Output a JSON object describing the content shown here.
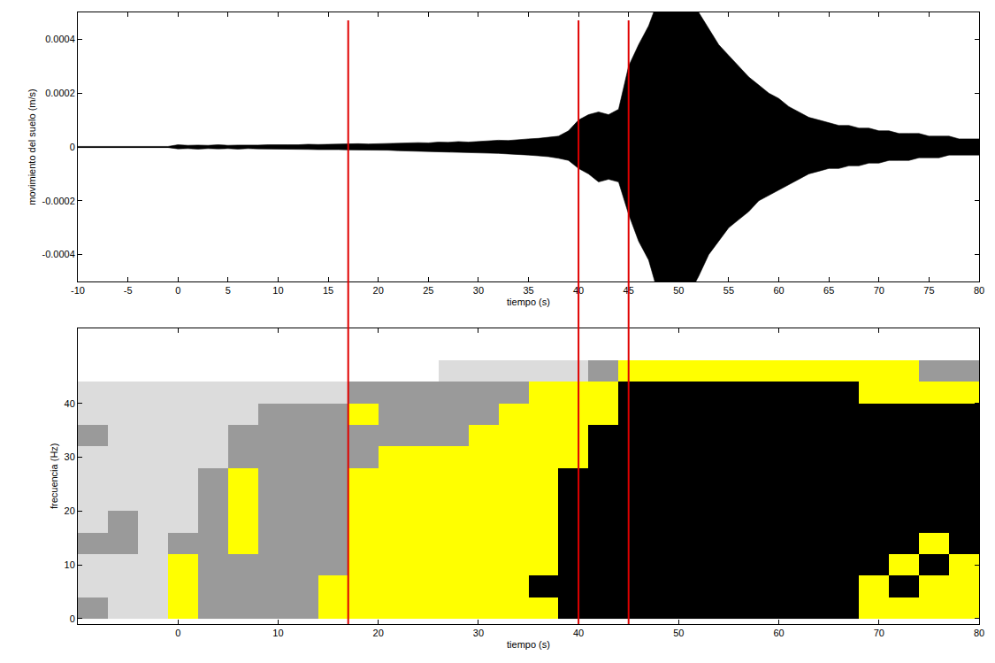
{
  "chart_data": [
    {
      "type": "line",
      "x_label": "tiempo (s)",
      "y_label": "movimiento del suelo (m/s)",
      "color": "#000000",
      "x": [
        -10,
        -9,
        -8,
        -7,
        -6,
        -5,
        -4,
        -3,
        -2,
        -1,
        0,
        1,
        2,
        3,
        4,
        5,
        6,
        7,
        8,
        9,
        10,
        11,
        12,
        13,
        14,
        15,
        16,
        17,
        18,
        19,
        20,
        21,
        22,
        23,
        24,
        25,
        26,
        27,
        28,
        29,
        30,
        31,
        32,
        33,
        34,
        35,
        36,
        37,
        38,
        39,
        40,
        41,
        42,
        43,
        44,
        45,
        46,
        47,
        48,
        49,
        50,
        51,
        52,
        53,
        54,
        55,
        56,
        57,
        58,
        59,
        60,
        61,
        62,
        63,
        64,
        65,
        66,
        67,
        68,
        69,
        70,
        71,
        72,
        73,
        74,
        75,
        76,
        77,
        78,
        79,
        80
      ],
      "upper": [
        2e-06,
        2e-06,
        2e-06,
        2e-06,
        2e-06,
        2e-06,
        2e-06,
        2e-06,
        2e-06,
        2e-06,
        8e-06,
        6e-06,
        7e-06,
        6e-06,
        8e-06,
        6e-06,
        7e-06,
        6e-06,
        7e-06,
        8e-06,
        7e-06,
        8e-06,
        8e-06,
        1e-05,
        9e-06,
        1e-05,
        9e-06,
        1e-05,
        1.2e-05,
        1.1e-05,
        1.2e-05,
        1.3e-05,
        1.5e-05,
        1.4e-05,
        1.6e-05,
        1.5e-05,
        1.8e-05,
        1.7e-05,
        2e-05,
        1.8e-05,
        2e-05,
        2.2e-05,
        2.5e-05,
        2.4e-05,
        2.8e-05,
        3e-05,
        3.2e-05,
        3.5e-05,
        4e-05,
        6e-05,
        0.0001,
        0.00012,
        0.00013,
        0.00012,
        0.00014,
        0.0003,
        0.00038,
        0.00045,
        0.00055,
        0.00055,
        0.00055,
        0.00055,
        0.0005,
        0.00044,
        0.00038,
        0.00034,
        0.0003,
        0.00026,
        0.00023,
        0.0002,
        0.00018,
        0.00015,
        0.00013,
        0.00011,
        0.0001,
        9e-05,
        8e-05,
        8e-05,
        7e-05,
        7e-05,
        6e-05,
        6e-05,
        5e-05,
        5e-05,
        5e-05,
        4e-05,
        4e-05,
        4e-05,
        3e-05,
        3e-05,
        3e-05
      ],
      "lower": [
        -2e-06,
        -2e-06,
        -2e-06,
        -2e-06,
        -2e-06,
        -2e-06,
        -2e-06,
        -2e-06,
        -2e-06,
        -2e-06,
        -7e-06,
        -6e-06,
        -8e-06,
        -6e-06,
        -7e-06,
        -6e-06,
        -8e-06,
        -6e-06,
        -7e-06,
        -7e-06,
        -8e-06,
        -7e-06,
        -9e-06,
        -9e-06,
        -1e-05,
        -9e-06,
        -1e-05,
        -1.1e-05,
        -1.1e-05,
        -1.2e-05,
        -1.3e-05,
        -1.2e-05,
        -1.4e-05,
        -1.5e-05,
        -1.6e-05,
        -1.5e-05,
        -1.7e-05,
        -1.8e-05,
        -1.9e-05,
        -2e-05,
        -2.1e-05,
        -2.2e-05,
        -2.4e-05,
        -2.6e-05,
        -2.7e-05,
        -3e-05,
        -3.3e-05,
        -3.6e-05,
        -4.2e-05,
        -5e-05,
        -8e-05,
        -0.0001,
        -0.00013,
        -0.00012,
        -0.00013,
        -0.00025,
        -0.00035,
        -0.00042,
        -0.00055,
        -0.00055,
        -0.00055,
        -0.00055,
        -0.00048,
        -0.0004,
        -0.00035,
        -0.0003,
        -0.00027,
        -0.00024,
        -0.0002,
        -0.00018,
        -0.00016,
        -0.00014,
        -0.00012,
        -0.0001,
        -9e-05,
        -8e-05,
        -8e-05,
        -7e-05,
        -7e-05,
        -6e-05,
        -6e-05,
        -5e-05,
        -5e-05,
        -5e-05,
        -4e-05,
        -4e-05,
        -4e-05,
        -3e-05,
        -3e-05,
        -3e-05,
        -3e-05
      ],
      "xlim": [
        -10,
        80
      ],
      "xticks": [
        -10,
        -5,
        0,
        5,
        10,
        15,
        20,
        25,
        30,
        35,
        40,
        45,
        50,
        55,
        60,
        65,
        70,
        75,
        80
      ],
      "ylim": [
        -0.0005,
        0.0005
      ],
      "yticks": [
        -0.0004,
        -0.0002,
        0,
        0.0002,
        0.0004
      ],
      "grid": false
    },
    {
      "type": "heatmap",
      "x_label": "tiempo (s)",
      "y_label": "frecuencia (Hz)",
      "x_edges": [
        -10,
        -7,
        -4,
        -1,
        2,
        5,
        8,
        11,
        14,
        17,
        20,
        23,
        26,
        29,
        32,
        35,
        38,
        41,
        44,
        47,
        50,
        53,
        56,
        59,
        62,
        65,
        68,
        71,
        74,
        77,
        80
      ],
      "y_edges": [
        0,
        4,
        8,
        12,
        16,
        20,
        24,
        28,
        32,
        36,
        40,
        44,
        48
      ],
      "colors": [
        "#ffffff",
        "#dcdcdc",
        "#9a9a9a",
        "#ffff00",
        "#000000"
      ],
      "cells": [
        [
          2,
          1,
          1,
          3,
          2,
          2,
          2,
          2,
          3,
          3,
          3,
          3,
          3,
          3,
          3,
          3,
          4,
          4,
          4,
          4,
          4,
          4,
          4,
          4,
          4,
          4,
          3,
          3,
          3,
          3
        ],
        [
          1,
          1,
          1,
          3,
          2,
          2,
          2,
          2,
          3,
          3,
          3,
          3,
          3,
          3,
          3,
          4,
          4,
          4,
          4,
          4,
          4,
          4,
          4,
          4,
          4,
          4,
          3,
          4,
          3,
          3
        ],
        [
          1,
          1,
          1,
          3,
          2,
          2,
          2,
          2,
          2,
          3,
          3,
          3,
          3,
          3,
          3,
          3,
          4,
          4,
          4,
          4,
          4,
          4,
          4,
          4,
          4,
          4,
          4,
          3,
          4,
          3
        ],
        [
          2,
          2,
          1,
          2,
          2,
          3,
          2,
          2,
          2,
          3,
          3,
          3,
          3,
          3,
          3,
          3,
          4,
          4,
          4,
          4,
          4,
          4,
          4,
          4,
          4,
          4,
          4,
          4,
          3,
          4
        ],
        [
          1,
          2,
          1,
          1,
          2,
          3,
          2,
          2,
          2,
          3,
          3,
          3,
          3,
          3,
          3,
          3,
          4,
          4,
          4,
          4,
          4,
          4,
          4,
          4,
          4,
          4,
          4,
          4,
          4,
          4
        ],
        [
          1,
          1,
          1,
          1,
          2,
          3,
          2,
          2,
          2,
          3,
          3,
          3,
          3,
          3,
          3,
          3,
          4,
          4,
          4,
          4,
          4,
          4,
          4,
          4,
          4,
          4,
          4,
          4,
          4,
          4
        ],
        [
          1,
          1,
          1,
          1,
          2,
          3,
          2,
          2,
          2,
          3,
          3,
          3,
          3,
          3,
          3,
          3,
          4,
          4,
          4,
          4,
          4,
          4,
          4,
          4,
          4,
          4,
          4,
          4,
          4,
          4
        ],
        [
          1,
          1,
          1,
          1,
          1,
          2,
          2,
          2,
          2,
          2,
          3,
          3,
          3,
          3,
          3,
          3,
          3,
          4,
          4,
          4,
          4,
          4,
          4,
          4,
          4,
          4,
          4,
          4,
          4,
          4
        ],
        [
          2,
          1,
          1,
          1,
          1,
          2,
          2,
          2,
          2,
          2,
          2,
          2,
          2,
          3,
          3,
          3,
          3,
          4,
          4,
          4,
          4,
          4,
          4,
          4,
          4,
          4,
          4,
          4,
          4,
          4
        ],
        [
          1,
          1,
          1,
          1,
          1,
          1,
          2,
          2,
          2,
          3,
          2,
          2,
          2,
          2,
          3,
          3,
          3,
          3,
          4,
          4,
          4,
          4,
          4,
          4,
          4,
          4,
          4,
          4,
          4,
          4
        ],
        [
          1,
          1,
          1,
          1,
          1,
          1,
          1,
          1,
          1,
          2,
          2,
          2,
          2,
          2,
          2,
          3,
          3,
          3,
          4,
          4,
          4,
          4,
          4,
          4,
          4,
          4,
          3,
          3,
          3,
          3
        ],
        [
          0,
          0,
          0,
          0,
          0,
          0,
          0,
          0,
          0,
          0,
          0,
          0,
          1,
          1,
          1,
          1,
          1,
          2,
          3,
          3,
          3,
          3,
          3,
          3,
          3,
          3,
          3,
          3,
          2,
          2
        ]
      ],
      "xlim": [
        -10,
        80
      ],
      "xticks": [
        0,
        10,
        20,
        30,
        40,
        50,
        60,
        70,
        80
      ],
      "ylim": [
        -1,
        54
      ],
      "yticks": [
        0,
        10,
        20,
        30,
        40
      ],
      "grid": false
    }
  ],
  "markers": {
    "x": [
      17,
      40,
      45
    ],
    "color": "#e00000"
  }
}
